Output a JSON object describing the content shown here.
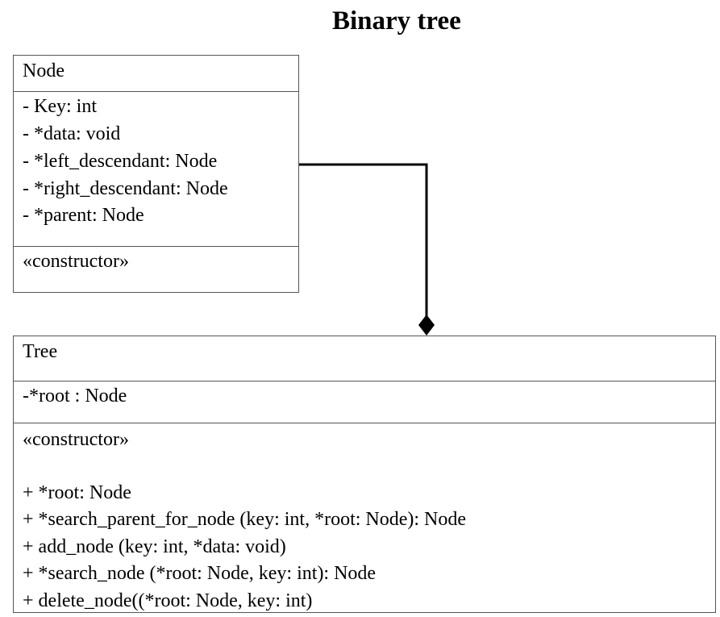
{
  "title": "Binary tree",
  "node_class": {
    "name": "Node",
    "attributes": [
      "- Key: int",
      "- *data: void",
      "- *left_descendant: Node",
      "- *right_descendant: Node",
      "- *parent: Node"
    ],
    "operations": [
      "«constructor»"
    ]
  },
  "tree_class": {
    "name": "Tree",
    "attributes": [
      "-*root : Node"
    ],
    "operations": [
      "«constructor»",
      "",
      "+ *root: Node",
      "+ *search_parent_for_node (key: int, *root: Node): Node",
      "+ add_node (key: int, *data: void)",
      "+ *search_node (*root: Node, key: int): Node",
      "+ delete_node((*root: Node, key: int)"
    ]
  },
  "relation": {
    "type": "composition",
    "from": "Node",
    "to": "Tree"
  }
}
